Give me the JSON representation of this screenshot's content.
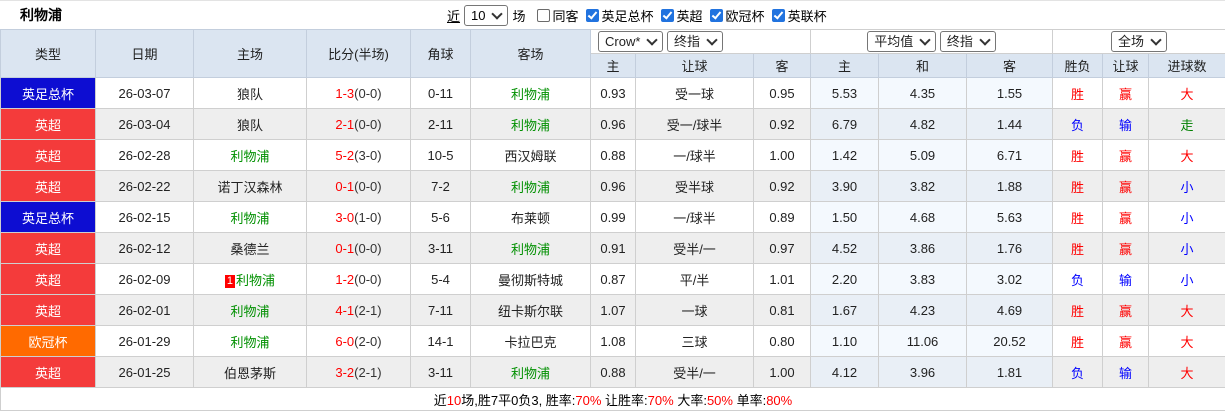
{
  "title": "利物浦",
  "filter_bar": {
    "recent_label": "近",
    "recent_select": "10",
    "games_label": "场",
    "same_away": {
      "label": "同客",
      "checked": false
    },
    "competitions": [
      {
        "label": "英足总杯",
        "checked": true
      },
      {
        "label": "英超",
        "checked": true
      },
      {
        "label": "欧冠杯",
        "checked": true
      },
      {
        "label": "英联杯",
        "checked": true
      }
    ]
  },
  "header": {
    "col_type": "类型",
    "col_date": "日期",
    "col_home": "主场",
    "col_score": "比分(半场)",
    "col_corner": "角球",
    "col_away": "客场",
    "odds_selects": {
      "company": "Crow*",
      "stage": "终指"
    },
    "avg_selects": {
      "company": "平均值",
      "stage": "终指"
    },
    "result_select": "全场",
    "odds_cols": [
      "主",
      "让球",
      "客"
    ],
    "avg_cols": [
      "主",
      "和",
      "客"
    ],
    "result_cols": [
      "胜负",
      "让球",
      "进球数"
    ]
  },
  "rows": [
    {
      "type": "英足总杯",
      "type_color": "blue",
      "date": "26-03-07",
      "home": "狼队",
      "home_green": false,
      "home_badge": "",
      "score": "1-3",
      "half": "(0-0)",
      "corner": "0-11",
      "away": "利物浦",
      "away_green": true,
      "odds": [
        "0.93",
        "受一球",
        "0.95"
      ],
      "avg": [
        "5.53",
        "4.35",
        "1.55"
      ],
      "result": [
        {
          "text": "胜",
          "color": "red"
        },
        {
          "text": "赢",
          "color": "red"
        },
        {
          "text": "大",
          "color": "red"
        }
      ]
    },
    {
      "type": "英超",
      "type_color": "red",
      "date": "26-03-04",
      "home": "狼队",
      "home_green": false,
      "home_badge": "",
      "score": "2-1",
      "half": "(0-0)",
      "corner": "2-11",
      "away": "利物浦",
      "away_green": true,
      "odds": [
        "0.96",
        "受一/球半",
        "0.92"
      ],
      "avg": [
        "6.79",
        "4.82",
        "1.44"
      ],
      "result": [
        {
          "text": "负",
          "color": "blue"
        },
        {
          "text": "输",
          "color": "blue"
        },
        {
          "text": "走",
          "color": "green"
        }
      ]
    },
    {
      "type": "英超",
      "type_color": "red",
      "date": "26-02-28",
      "home": "利物浦",
      "home_green": true,
      "home_badge": "",
      "score": "5-2",
      "half": "(3-0)",
      "corner": "10-5",
      "away": "西汉姆联",
      "away_green": false,
      "odds": [
        "0.88",
        "一/球半",
        "1.00"
      ],
      "avg": [
        "1.42",
        "5.09",
        "6.71"
      ],
      "result": [
        {
          "text": "胜",
          "color": "red"
        },
        {
          "text": "赢",
          "color": "red"
        },
        {
          "text": "大",
          "color": "red"
        }
      ]
    },
    {
      "type": "英超",
      "type_color": "red",
      "date": "26-02-22",
      "home": "诺丁汉森林",
      "home_green": false,
      "home_badge": "",
      "score": "0-1",
      "half": "(0-0)",
      "corner": "7-2",
      "away": "利物浦",
      "away_green": true,
      "odds": [
        "0.96",
        "受半球",
        "0.92"
      ],
      "avg": [
        "3.90",
        "3.82",
        "1.88"
      ],
      "result": [
        {
          "text": "胜",
          "color": "red"
        },
        {
          "text": "赢",
          "color": "red"
        },
        {
          "text": "小",
          "color": "blue"
        }
      ]
    },
    {
      "type": "英足总杯",
      "type_color": "blue",
      "date": "26-02-15",
      "home": "利物浦",
      "home_green": true,
      "home_badge": "",
      "score": "3-0",
      "half": "(1-0)",
      "corner": "5-6",
      "away": "布莱顿",
      "away_green": false,
      "odds": [
        "0.99",
        "一/球半",
        "0.89"
      ],
      "avg": [
        "1.50",
        "4.68",
        "5.63"
      ],
      "result": [
        {
          "text": "胜",
          "color": "red"
        },
        {
          "text": "赢",
          "color": "red"
        },
        {
          "text": "小",
          "color": "blue"
        }
      ]
    },
    {
      "type": "英超",
      "type_color": "red",
      "date": "26-02-12",
      "home": "桑德兰",
      "home_green": false,
      "home_badge": "",
      "score": "0-1",
      "half": "(0-0)",
      "corner": "3-11",
      "away": "利物浦",
      "away_green": true,
      "odds": [
        "0.91",
        "受半/一",
        "0.97"
      ],
      "avg": [
        "4.52",
        "3.86",
        "1.76"
      ],
      "result": [
        {
          "text": "胜",
          "color": "red"
        },
        {
          "text": "赢",
          "color": "red"
        },
        {
          "text": "小",
          "color": "blue"
        }
      ]
    },
    {
      "type": "英超",
      "type_color": "red",
      "date": "26-02-09",
      "home": "利物浦",
      "home_green": true,
      "home_badge": "1",
      "score": "1-2",
      "half": "(0-0)",
      "corner": "5-4",
      "away": "曼彻斯特城",
      "away_green": false,
      "odds": [
        "0.87",
        "平/半",
        "1.01"
      ],
      "avg": [
        "2.20",
        "3.83",
        "3.02"
      ],
      "result": [
        {
          "text": "负",
          "color": "blue"
        },
        {
          "text": "输",
          "color": "blue"
        },
        {
          "text": "小",
          "color": "blue"
        }
      ]
    },
    {
      "type": "英超",
      "type_color": "red",
      "date": "26-02-01",
      "home": "利物浦",
      "home_green": true,
      "home_badge": "",
      "score": "4-1",
      "half": "(2-1)",
      "corner": "7-11",
      "away": "纽卡斯尔联",
      "away_green": false,
      "odds": [
        "1.07",
        "一球",
        "0.81"
      ],
      "avg": [
        "1.67",
        "4.23",
        "4.69"
      ],
      "result": [
        {
          "text": "胜",
          "color": "red"
        },
        {
          "text": "赢",
          "color": "red"
        },
        {
          "text": "大",
          "color": "red"
        }
      ]
    },
    {
      "type": "欧冠杯",
      "type_color": "orange",
      "date": "26-01-29",
      "home": "利物浦",
      "home_green": true,
      "home_badge": "",
      "score": "6-0",
      "half": "(2-0)",
      "corner": "14-1",
      "away": "卡拉巴克",
      "away_green": false,
      "odds": [
        "1.08",
        "三球",
        "0.80"
      ],
      "avg": [
        "1.10",
        "11.06",
        "20.52"
      ],
      "result": [
        {
          "text": "胜",
          "color": "red"
        },
        {
          "text": "赢",
          "color": "red"
        },
        {
          "text": "大",
          "color": "red"
        }
      ]
    },
    {
      "type": "英超",
      "type_color": "red",
      "date": "26-01-25",
      "home": "伯恩茅斯",
      "home_green": false,
      "home_badge": "",
      "score": "3-2",
      "half": "(2-1)",
      "corner": "3-11",
      "away": "利物浦",
      "away_green": true,
      "odds": [
        "0.88",
        "受半/一",
        "1.00"
      ],
      "avg": [
        "4.12",
        "3.96",
        "1.81"
      ],
      "result": [
        {
          "text": "负",
          "color": "blue"
        },
        {
          "text": "输",
          "color": "blue"
        },
        {
          "text": "大",
          "color": "red"
        }
      ]
    }
  ],
  "summary": {
    "segments": [
      {
        "text": "近",
        "red": false
      },
      {
        "text": "10",
        "red": true
      },
      {
        "text": "场,胜7平0负3, 胜率:",
        "red": false
      },
      {
        "text": "70%",
        "red": true
      },
      {
        "text": " 让胜率:",
        "red": false
      },
      {
        "text": "70%",
        "red": true
      },
      {
        "text": " 大率:",
        "red": false
      },
      {
        "text": "50%",
        "red": true
      },
      {
        "text": " 单率:",
        "red": false
      },
      {
        "text": "80%",
        "red": true
      }
    ]
  },
  "colors": {
    "fa_cup_blue": "#0d0dd2",
    "premier_league_red": "#f43b3b",
    "champions_league_orange": "#ff6a00",
    "liverpool_green": "#009000",
    "win_red": "#ff0000",
    "lose_blue": "#0000ff",
    "draw_green": "#008000",
    "header_bg": "#dbe5f1",
    "checkbox_blue": "#2173df"
  }
}
